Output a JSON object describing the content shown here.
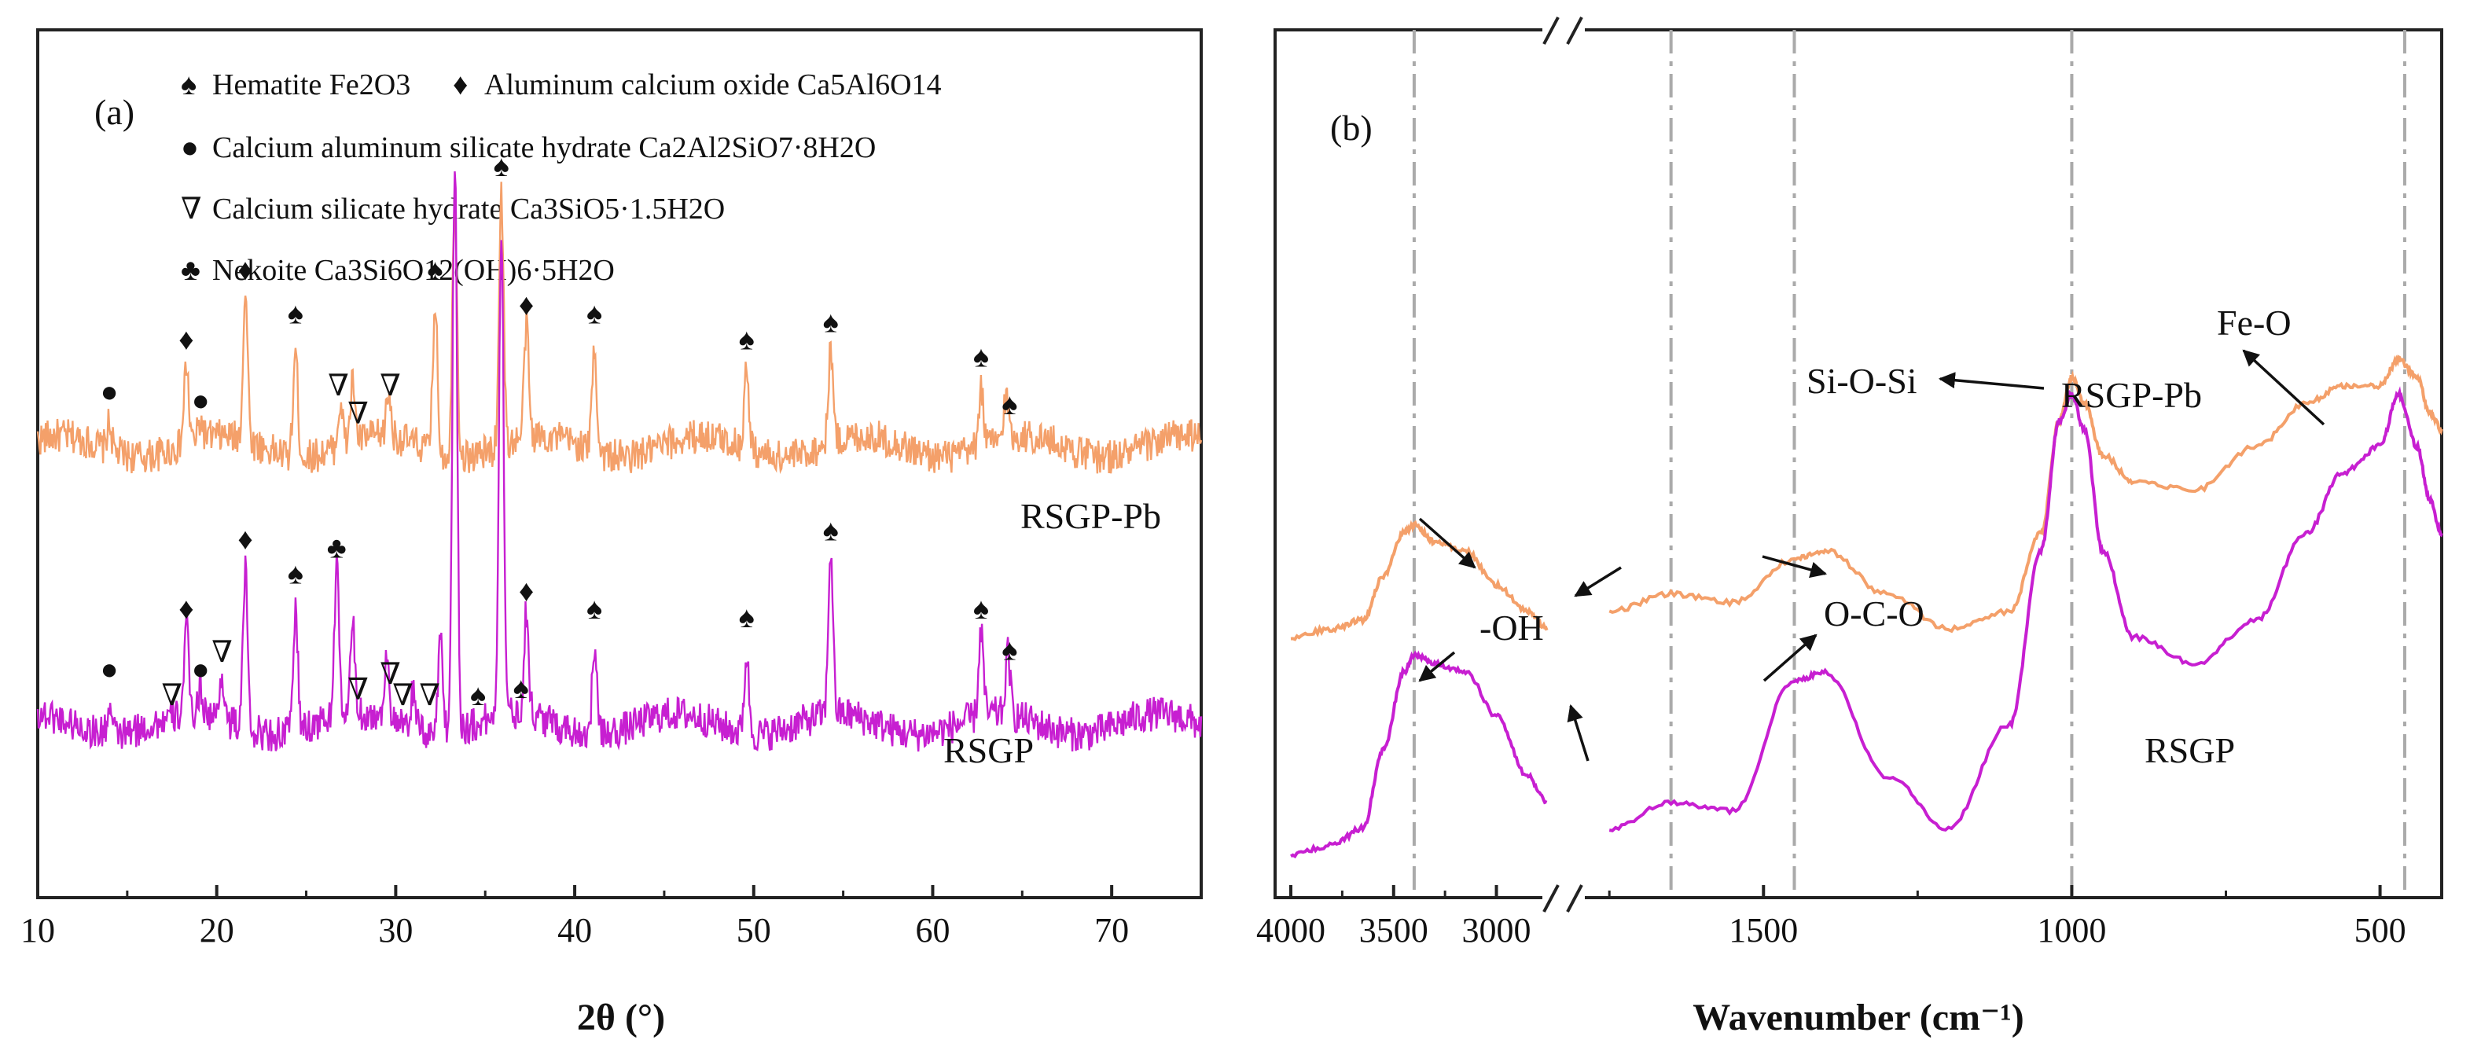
{
  "chart_data": [
    {
      "panel": "(a)",
      "type": "line",
      "xlabel": "2θ (°)",
      "xlim": [
        10,
        75
      ],
      "xticks": [
        10,
        20,
        30,
        40,
        50,
        60,
        70
      ],
      "grid": false,
      "legend": [
        {
          "symbol": "♠",
          "text": "Hematite Fe2O3"
        },
        {
          "symbol": "♦",
          "text": "Aluminum calcium oxide Ca5Al6O14"
        },
        {
          "symbol": "●",
          "text": "Calcium aluminum silicate hydrate Ca2Al2SiO7·8H2O"
        },
        {
          "symbol": "∇",
          "text": "Calcium silicate hydrate Ca3SiO5·1.5H2O"
        },
        {
          "symbol": "♣",
          "text": "Nekoite Ca3Si6O12(OH)6·5H2O"
        }
      ],
      "series": [
        {
          "name": "RSGP-Pb",
          "color": "#F4A06A",
          "baseline": 0.52,
          "peaks": [
            [
              14.0,
              0.03
            ],
            [
              18.3,
              0.09
            ],
            [
              19.1,
              0.02
            ],
            [
              21.6,
              0.17
            ],
            [
              24.4,
              0.12
            ],
            [
              26.9,
              0.05
            ],
            [
              27.6,
              0.07
            ],
            [
              29.6,
              0.05
            ],
            [
              32.2,
              0.17
            ],
            [
              33.3,
              0.3
            ],
            [
              35.9,
              0.29
            ],
            [
              37.3,
              0.13
            ],
            [
              41.1,
              0.12
            ],
            [
              49.6,
              0.09
            ],
            [
              54.3,
              0.11
            ],
            [
              62.7,
              0.07
            ],
            [
              64.1,
              0.05
            ]
          ],
          "labels": [
            {
              "symbol": "●",
              "x": 14.0
            },
            {
              "symbol": "♦",
              "x": 18.3
            },
            {
              "symbol": "●",
              "x": 19.1
            },
            {
              "symbol": "♦",
              "x": 21.6
            },
            {
              "symbol": "♠",
              "x": 24.4
            },
            {
              "symbol": "∇",
              "x": 26.8
            },
            {
              "symbol": "∇",
              "x": 27.9
            },
            {
              "symbol": "∇",
              "x": 29.7
            },
            {
              "symbol": "♠",
              "x": 32.2
            },
            {
              "symbol": "♠",
              "x": 35.9
            },
            {
              "symbol": "♦",
              "x": 37.3
            },
            {
              "symbol": "♠",
              "x": 41.1
            },
            {
              "symbol": "♠",
              "x": 49.6
            },
            {
              "symbol": "♠",
              "x": 54.3
            },
            {
              "symbol": "♠",
              "x": 62.7
            },
            {
              "symbol": "♠",
              "x": 64.3
            }
          ]
        },
        {
          "name": "RSGP",
          "color": "#C71FD1",
          "baseline": 0.2,
          "peaks": [
            [
              14.0,
              0.03
            ],
            [
              18.3,
              0.1
            ],
            [
              19.1,
              0.03
            ],
            [
              20.3,
              0.05
            ],
            [
              21.6,
              0.18
            ],
            [
              24.4,
              0.14
            ],
            [
              26.7,
              0.17
            ],
            [
              27.6,
              0.1
            ],
            [
              29.5,
              0.08
            ],
            [
              31.0,
              0.05
            ],
            [
              32.5,
              0.12
            ],
            [
              33.3,
              0.66
            ],
            [
              35.9,
              0.56
            ],
            [
              37.3,
              0.12
            ],
            [
              41.1,
              0.1
            ],
            [
              49.6,
              0.09
            ],
            [
              54.3,
              0.19
            ],
            [
              62.7,
              0.1
            ],
            [
              64.2,
              0.07
            ]
          ],
          "labels": [
            {
              "symbol": "●",
              "x": 14.0
            },
            {
              "symbol": "∇",
              "x": 17.5
            },
            {
              "symbol": "♦",
              "x": 18.3
            },
            {
              "symbol": "●",
              "x": 19.1
            },
            {
              "symbol": "∇",
              "x": 20.3
            },
            {
              "symbol": "♦",
              "x": 21.6
            },
            {
              "symbol": "♠",
              "x": 24.4
            },
            {
              "symbol": "♣",
              "x": 26.7
            },
            {
              "symbol": "∇",
              "x": 27.9
            },
            {
              "symbol": "∇",
              "x": 29.7
            },
            {
              "symbol": "∇",
              "x": 30.4
            },
            {
              "symbol": "∇",
              "x": 31.9
            },
            {
              "symbol": "♠",
              "x": 34.6
            },
            {
              "symbol": "♠",
              "x": 37.0
            },
            {
              "symbol": "♦",
              "x": 37.3
            },
            {
              "symbol": "♠",
              "x": 41.1
            },
            {
              "symbol": "♠",
              "x": 49.6
            },
            {
              "symbol": "♠",
              "x": 54.3
            },
            {
              "symbol": "♠",
              "x": 62.7
            },
            {
              "symbol": "♠",
              "x": 64.3
            }
          ]
        }
      ]
    },
    {
      "panel": "(b)",
      "type": "line",
      "xlabel": "Wavenumber (cm⁻¹)",
      "xlim": [
        4000,
        400
      ],
      "axis_break": [
        2700,
        1800
      ],
      "xticks": [
        4000,
        3500,
        3000,
        1500,
        1000,
        500
      ],
      "grid": false,
      "reference_lines": [
        3400,
        1650,
        1450,
        1000,
        460
      ],
      "annotations": [
        "-OH",
        "O-C-O",
        "Si-O-Si",
        "Fe-O"
      ],
      "series": [
        {
          "name": "RSGP-Pb",
          "color": "#F4A06A",
          "points": [
            [
              4000,
              0.3
            ],
            [
              3800,
              0.31
            ],
            [
              3650,
              0.32
            ],
            [
              3550,
              0.37
            ],
            [
              3450,
              0.42
            ],
            [
              3400,
              0.43
            ],
            [
              3300,
              0.41
            ],
            [
              3150,
              0.4
            ],
            [
              3000,
              0.36
            ],
            [
              2850,
              0.33
            ],
            [
              2750,
              0.31
            ],
            [
              1750,
              0.33
            ],
            [
              1650,
              0.35
            ],
            [
              1550,
              0.34
            ],
            [
              1450,
              0.39
            ],
            [
              1400,
              0.4
            ],
            [
              1300,
              0.35
            ],
            [
              1200,
              0.31
            ],
            [
              1100,
              0.33
            ],
            [
              1050,
              0.42
            ],
            [
              1020,
              0.55
            ],
            [
              1000,
              0.6
            ],
            [
              980,
              0.57
            ],
            [
              950,
              0.51
            ],
            [
              900,
              0.48
            ],
            [
              800,
              0.47
            ],
            [
              700,
              0.52
            ],
            [
              620,
              0.57
            ],
            [
              560,
              0.59
            ],
            [
              500,
              0.59
            ],
            [
              470,
              0.62
            ],
            [
              440,
              0.6
            ],
            [
              420,
              0.56
            ],
            [
              400,
              0.54
            ]
          ]
        },
        {
          "name": "RSGP",
          "color": "#C71FD1",
          "points": [
            [
              4000,
              0.05
            ],
            [
              3800,
              0.06
            ],
            [
              3650,
              0.08
            ],
            [
              3550,
              0.17
            ],
            [
              3450,
              0.26
            ],
            [
              3400,
              0.28
            ],
            [
              3300,
              0.27
            ],
            [
              3150,
              0.26
            ],
            [
              3000,
              0.21
            ],
            [
              2850,
              0.14
            ],
            [
              2750,
              0.11
            ],
            [
              1750,
              0.08
            ],
            [
              1650,
              0.11
            ],
            [
              1550,
              0.1
            ],
            [
              1450,
              0.25
            ],
            [
              1400,
              0.26
            ],
            [
              1300,
              0.14
            ],
            [
              1200,
              0.08
            ],
            [
              1100,
              0.2
            ],
            [
              1050,
              0.4
            ],
            [
              1020,
              0.55
            ],
            [
              1000,
              0.58
            ],
            [
              980,
              0.54
            ],
            [
              950,
              0.4
            ],
            [
              900,
              0.3
            ],
            [
              800,
              0.27
            ],
            [
              700,
              0.32
            ],
            [
              620,
              0.42
            ],
            [
              560,
              0.49
            ],
            [
              500,
              0.52
            ],
            [
              470,
              0.58
            ],
            [
              440,
              0.52
            ],
            [
              420,
              0.46
            ],
            [
              400,
              0.42
            ]
          ]
        }
      ]
    }
  ]
}
